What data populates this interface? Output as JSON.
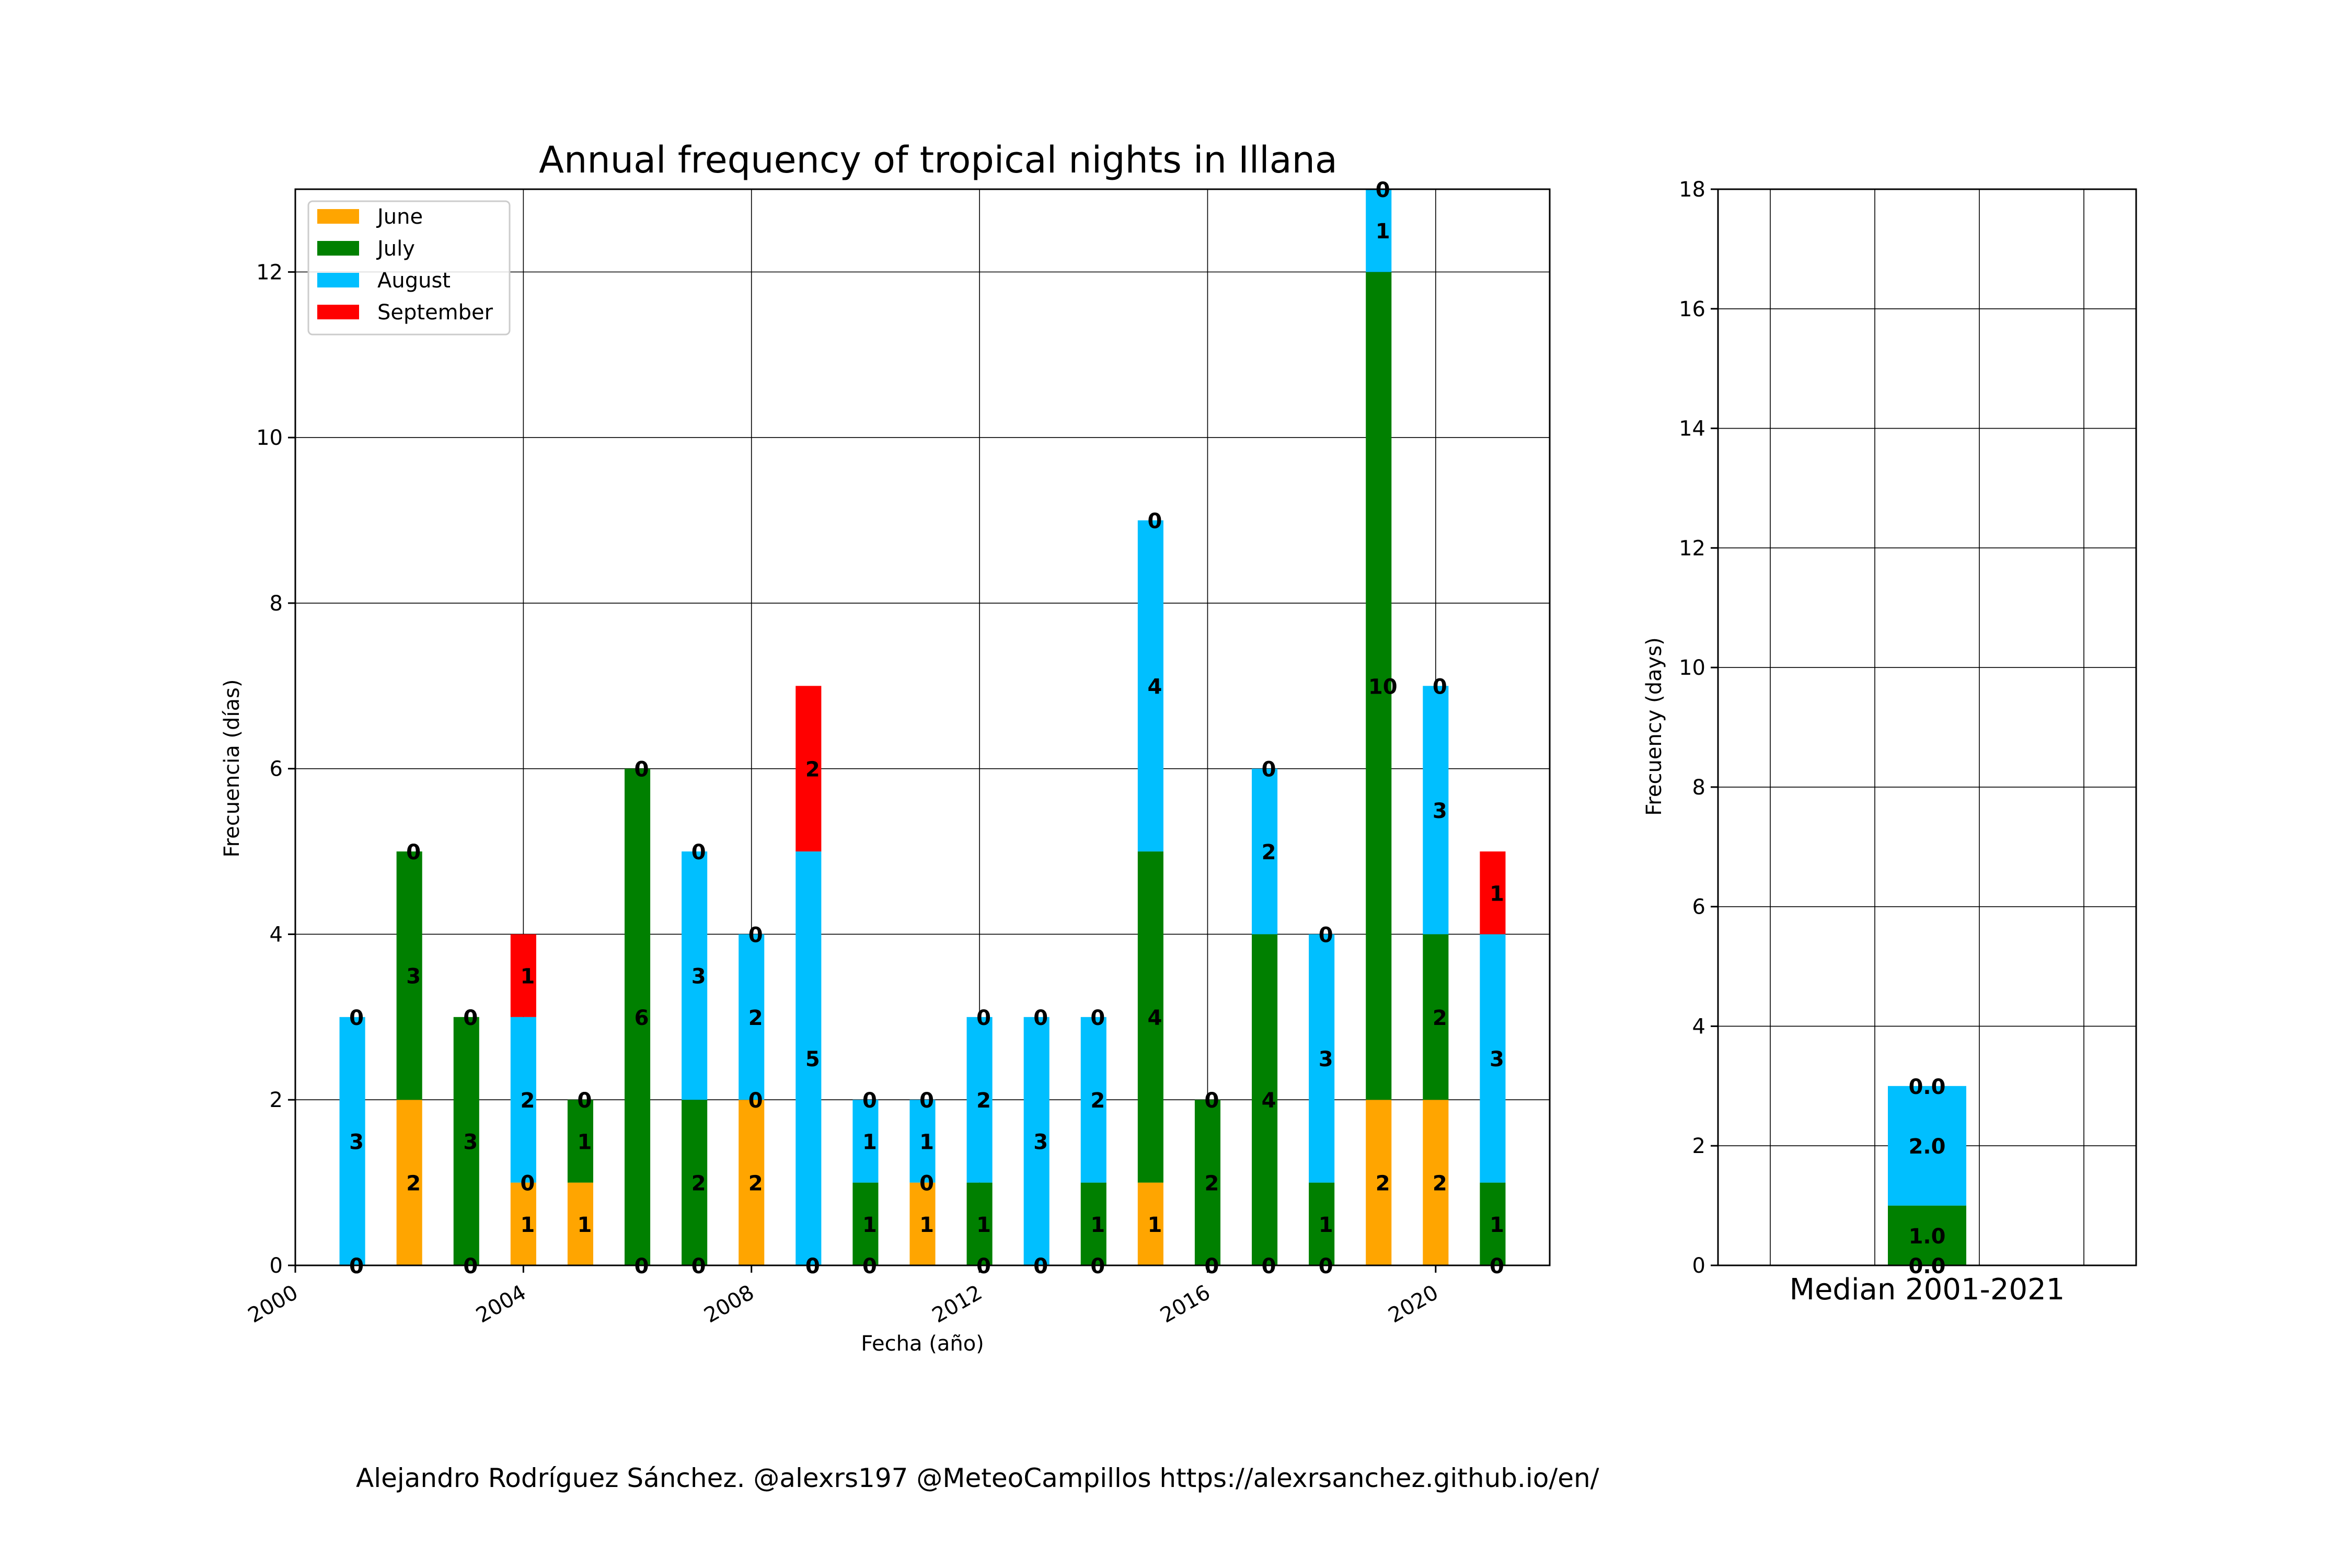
{
  "chart_data": [
    {
      "type": "bar",
      "stacked": true,
      "title": "Annual frequency of tropical nights in Illana",
      "xlabel": "Fecha (año)",
      "ylabel": "Frecuencia (días)",
      "x": [
        2001,
        2002,
        2003,
        2004,
        2005,
        2006,
        2007,
        2008,
        2009,
        2010,
        2011,
        2012,
        2013,
        2014,
        2015,
        2016,
        2017,
        2018,
        2019,
        2020,
        2021
      ],
      "series": [
        {
          "name": "June",
          "color": "#ffa500",
          "values": [
            0,
            2,
            0,
            1,
            1,
            0,
            0,
            2,
            0,
            0,
            1,
            0,
            0,
            0,
            1,
            0,
            0,
            0,
            2,
            2,
            0
          ]
        },
        {
          "name": "July",
          "color": "#008000",
          "values": [
            0,
            3,
            3,
            0,
            1,
            6,
            2,
            0,
            0,
            1,
            0,
            1,
            0,
            1,
            4,
            2,
            4,
            1,
            10,
            2,
            1
          ]
        },
        {
          "name": "August",
          "color": "#00bfff",
          "values": [
            3,
            0,
            0,
            2,
            0,
            0,
            3,
            2,
            5,
            1,
            1,
            2,
            3,
            2,
            4,
            0,
            2,
            3,
            1,
            3,
            3
          ]
        },
        {
          "name": "September",
          "color": "#ff0000",
          "values": [
            0,
            0,
            0,
            1,
            0,
            0,
            0,
            0,
            2,
            0,
            0,
            0,
            0,
            0,
            0,
            0,
            0,
            0,
            0,
            0,
            1
          ]
        }
      ],
      "xlim": [
        2000,
        2022
      ],
      "ylim": [
        0,
        13
      ],
      "xticks": [
        "2000",
        "2004",
        "2008",
        "2012",
        "2016",
        "2020"
      ],
      "yticks": [
        "0",
        "2",
        "4",
        "6",
        "8",
        "10",
        "12"
      ],
      "grid": true,
      "legend": "top-left"
    },
    {
      "type": "bar",
      "stacked": true,
      "xlabel": "Median 2001-2021",
      "ylabel": "Frecuency (days)",
      "series": [
        {
          "name": "June",
          "color": "#ffa500",
          "values": [
            0.0
          ],
          "label": "0.0"
        },
        {
          "name": "July",
          "color": "#008000",
          "values": [
            1.0
          ],
          "label": "1.0"
        },
        {
          "name": "August",
          "color": "#00bfff",
          "values": [
            2.0
          ],
          "label": "2.0"
        },
        {
          "name": "September",
          "color": "#ff0000",
          "values": [
            0.0
          ],
          "label": "0.0"
        }
      ],
      "ylim": [
        0,
        18
      ],
      "yticks": [
        "0",
        "2",
        "4",
        "6",
        "8",
        "10",
        "12",
        "14",
        "16",
        "18"
      ],
      "grid": true
    }
  ],
  "footer": {
    "credit": "Alejandro Rodríguez Sánchez. @alexrs197 @MeteoCampillos   https://alexrsanchez.github.io/en/"
  }
}
